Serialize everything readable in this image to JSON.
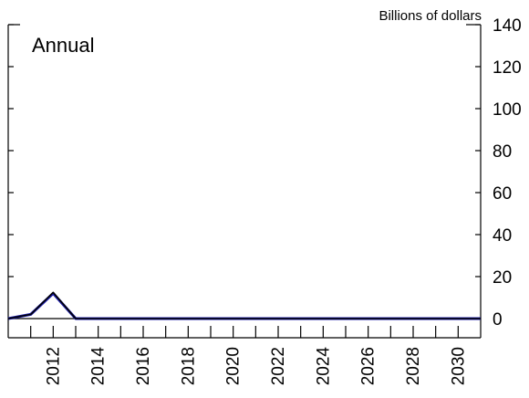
{
  "chart_data": {
    "type": "line",
    "title": "",
    "xlabel": "",
    "ylabel": "Billions of dollars",
    "annotation": "Annual",
    "x": [
      2010,
      2011,
      2012,
      2013,
      2014,
      2015,
      2016,
      2017,
      2018,
      2019,
      2020,
      2021,
      2022,
      2023,
      2024,
      2025,
      2026,
      2027,
      2028,
      2029,
      2030,
      2031
    ],
    "xticks": [
      2012,
      2014,
      2016,
      2018,
      2020,
      2022,
      2024,
      2026,
      2028,
      2030
    ],
    "xlim": [
      2010,
      2031
    ],
    "ylim": [
      0,
      140
    ],
    "yticks": [
      0,
      20,
      40,
      60,
      80,
      100,
      120,
      140
    ],
    "series": [
      {
        "color": "#1a1aa8",
        "values": [
          0,
          2,
          12,
          0,
          0,
          0,
          0,
          0,
          0,
          0,
          0,
          0,
          0,
          0,
          0,
          0,
          0,
          0,
          0,
          0,
          0,
          0
        ]
      },
      {
        "color": "#000000",
        "values": [
          0,
          2,
          12.5,
          0,
          0,
          0,
          0,
          0,
          0,
          0,
          0,
          0,
          0,
          0,
          0,
          0,
          0,
          0,
          0,
          0,
          0,
          0
        ]
      }
    ],
    "grid": false,
    "legend": "none"
  }
}
